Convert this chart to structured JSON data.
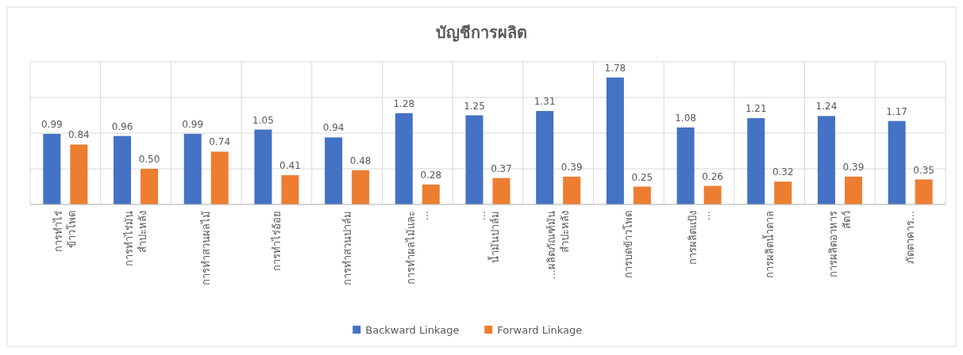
{
  "chart_data": {
    "type": "bar",
    "title": "บัญชีการผลิต",
    "categories": [
      "การทำไร่ ข้าวโพด",
      "การทำไร่มัน สำปะหลัง",
      "การทำสวนผลไม้",
      "การทำไร่อ้อย",
      "การทำสวนปาล์ม",
      "การทำผลไม้และ ...",
      "... น้ำมันปาล์ม",
      "...ผลิตภัณฑ์มัน สำปะหลัง",
      "การบดข้าวโพด",
      "การผลิตแป้ง ...",
      "การผลิตน้ำตาล",
      "การผลิตอาหาร สัตว์",
      "ภัตตาคาร..."
    ],
    "series": [
      {
        "name": "Backward Linkage",
        "color": "#4472c4",
        "values": [
          0.99,
          0.96,
          0.99,
          1.05,
          0.94,
          1.28,
          1.25,
          1.31,
          1.78,
          1.08,
          1.21,
          1.24,
          1.17
        ],
        "value_labels": [
          "0.99",
          "0.96",
          "0.99",
          "1.05",
          "0.94",
          "1.28",
          "1.25",
          "1.31",
          "1.78",
          "1.08",
          "1.21",
          "1.24",
          "1.17"
        ]
      },
      {
        "name": "Forward Linkage",
        "color": "#ed7d31",
        "values": [
          0.84,
          0.5,
          0.74,
          0.41,
          0.48,
          0.28,
          0.37,
          0.39,
          0.25,
          0.26,
          0.32,
          0.39,
          0.35
        ],
        "value_labels": [
          "0.84",
          "0.50",
          "0.74",
          "0.41",
          "0.48",
          "0.28",
          "0.37",
          "0.39",
          "0.25",
          "0.26",
          "0.32",
          "0.39",
          "0.35"
        ]
      }
    ],
    "ylim": [
      0,
      2
    ],
    "yticks": [
      {
        "value": 0,
        "label": null
      },
      {
        "value": 0.5,
        "label": null
      },
      {
        "value": 1,
        "label": null
      },
      {
        "value": 1.5,
        "label": null
      },
      {
        "value": 2,
        "label": null
      }
    ],
    "tick_labels": "x",
    "grid": true,
    "legend": "bottom"
  }
}
